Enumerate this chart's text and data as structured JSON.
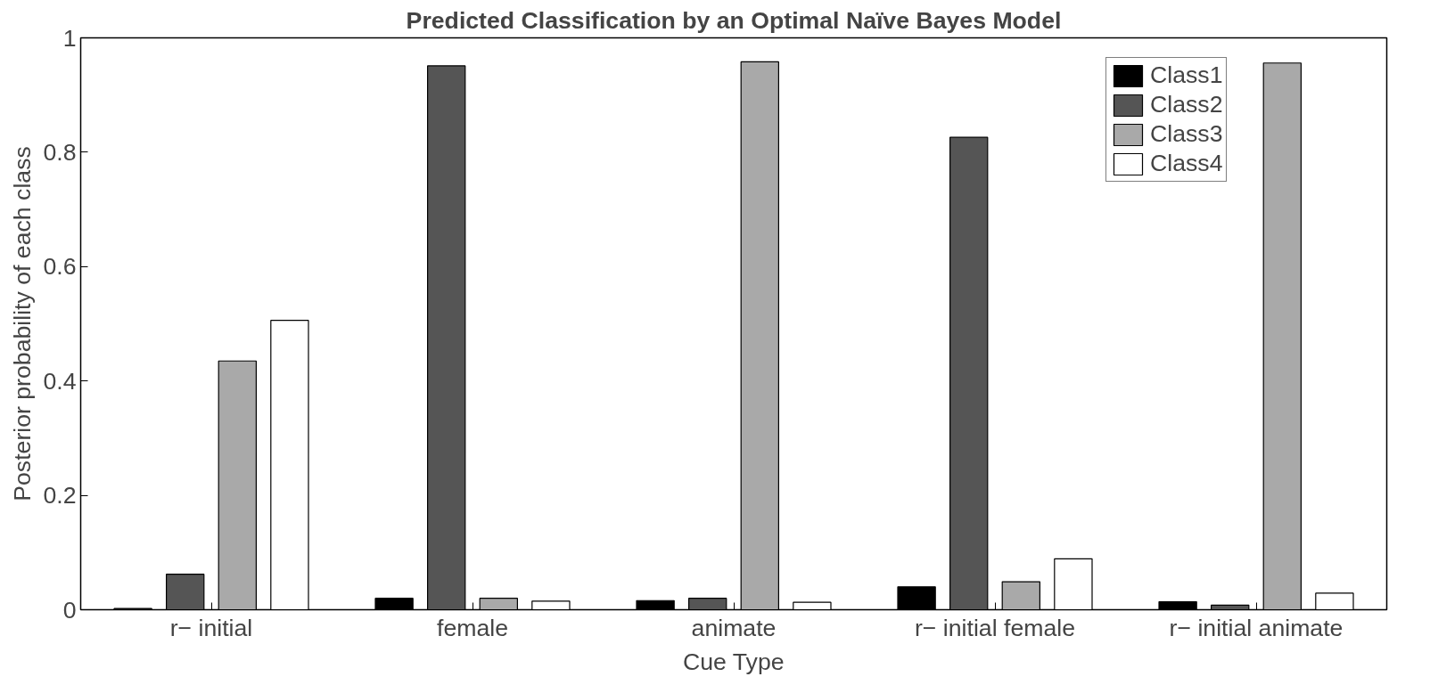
{
  "chart_data": {
    "type": "bar",
    "title": "Predicted Classification by an Optimal Naïve Bayes Model",
    "xlabel": "Cue Type",
    "ylabel": "Posterior probability of each class",
    "categories": [
      "r− initial",
      "female",
      "animate",
      "r− initial female",
      "r− initial animate"
    ],
    "series": [
      {
        "name": "Class1",
        "color": "#000000",
        "values": [
          0.002,
          0.02,
          0.016,
          0.04,
          0.014
        ]
      },
      {
        "name": "Class2",
        "color": "#555555",
        "values": [
          0.062,
          0.951,
          0.02,
          0.826,
          0.008
        ]
      },
      {
        "name": "Class3",
        "color": "#a9a9a9",
        "values": [
          0.435,
          0.02,
          0.958,
          0.049,
          0.956
        ]
      },
      {
        "name": "Class4",
        "color": "#ffffff",
        "values": [
          0.506,
          0.015,
          0.013,
          0.089,
          0.029
        ]
      }
    ],
    "ylim": [
      0,
      1
    ],
    "yticks": [
      0,
      0.2,
      0.4,
      0.6,
      0.8,
      1
    ],
    "grid": false,
    "legend": "top right"
  }
}
